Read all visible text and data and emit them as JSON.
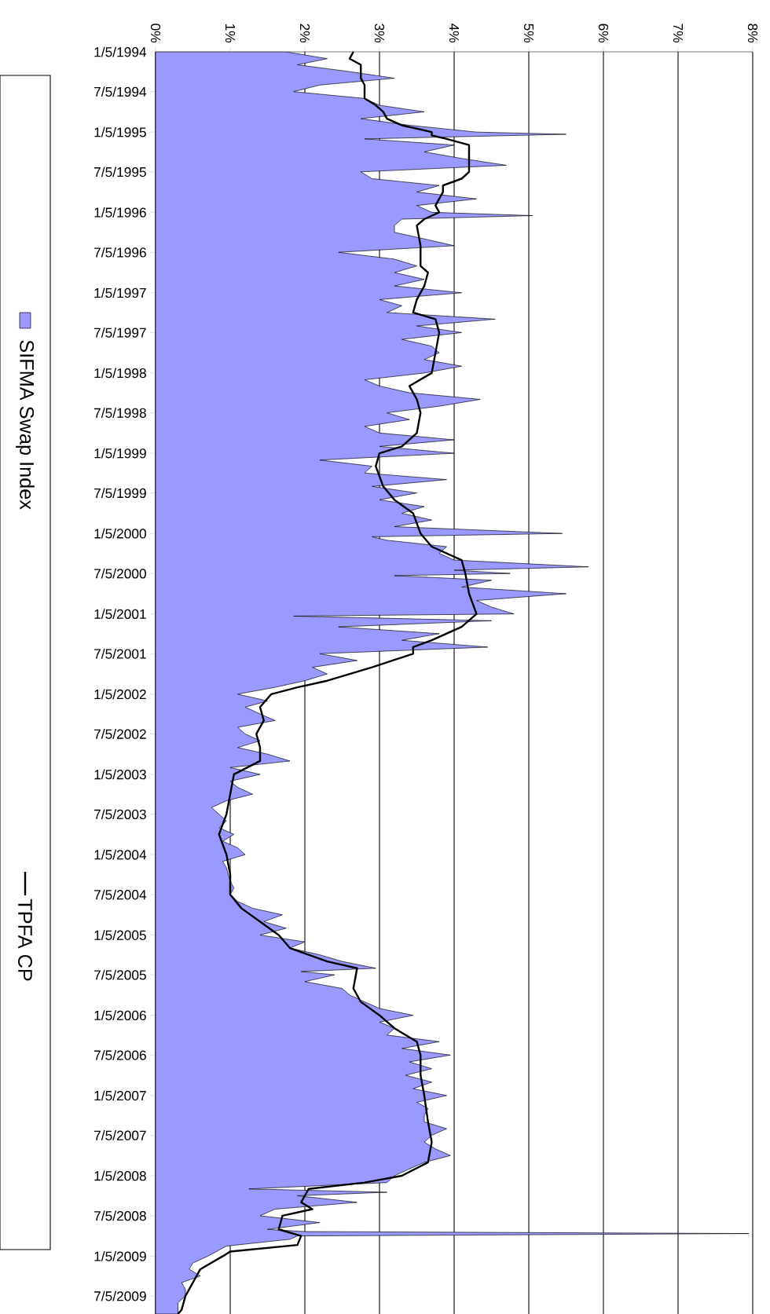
{
  "chart_data": {
    "type": "area",
    "series": [
      {
        "name": "SIFMA Swap Index",
        "type": "area",
        "color": "#9999ff",
        "x": [
          "1994-01-05",
          "1994-02-05",
          "1994-03-05",
          "1994-04-05",
          "1994-05-05",
          "1994-06-05",
          "1994-07-05",
          "1994-08-05",
          "1994-09-05",
          "1994-10-05",
          "1994-11-05",
          "1994-12-05",
          "1995-01-05",
          "1995-01-15",
          "1995-02-05",
          "1995-03-05",
          "1995-04-05",
          "1995-05-05",
          "1995-06-05",
          "1995-07-05",
          "1995-08-05",
          "1995-09-05",
          "1995-10-05",
          "1995-11-05",
          "1995-12-05",
          "1996-01-05",
          "1996-01-20",
          "1996-02-05",
          "1996-03-05",
          "1996-04-05",
          "1996-05-05",
          "1996-06-05",
          "1996-07-05",
          "1996-08-05",
          "1996-09-05",
          "1996-10-05",
          "1996-11-05",
          "1996-12-05",
          "1997-01-05",
          "1997-02-05",
          "1997-03-05",
          "1997-04-05",
          "1997-05-05",
          "1997-06-05",
          "1997-07-05",
          "1997-08-05",
          "1997-09-05",
          "1997-10-05",
          "1997-11-05",
          "1997-12-05",
          "1998-01-05",
          "1998-02-05",
          "1998-03-05",
          "1998-04-05",
          "1998-05-05",
          "1998-06-05",
          "1998-07-05",
          "1998-08-05",
          "1998-09-05",
          "1998-10-05",
          "1998-11-05",
          "1998-12-05",
          "1999-01-05",
          "1999-02-05",
          "1999-03-05",
          "1999-04-05",
          "1999-05-05",
          "1999-06-05",
          "1999-07-05",
          "1999-08-05",
          "1999-09-05",
          "1999-10-05",
          "1999-11-05",
          "1999-12-05",
          "2000-01-05",
          "2000-01-20",
          "2000-02-05",
          "2000-03-05",
          "2000-04-05",
          "2000-05-05",
          "2000-06-05",
          "2000-06-20",
          "2000-07-05",
          "2000-07-15",
          "2000-08-05",
          "2000-09-05",
          "2000-10-05",
          "2000-11-05",
          "2000-12-05",
          "2001-01-05",
          "2001-01-15",
          "2001-02-05",
          "2001-03-05",
          "2001-04-05",
          "2001-05-05",
          "2001-06-05",
          "2001-07-05",
          "2001-08-05",
          "2001-09-05",
          "2001-10-05",
          "2001-11-05",
          "2001-12-05",
          "2002-01-05",
          "2002-02-05",
          "2002-03-05",
          "2002-04-05",
          "2002-05-05",
          "2002-06-05",
          "2002-07-05",
          "2002-08-05",
          "2002-09-05",
          "2002-10-05",
          "2002-11-05",
          "2002-12-05",
          "2003-01-05",
          "2003-02-05",
          "2003-03-05",
          "2003-04-05",
          "2003-05-05",
          "2003-06-05",
          "2003-07-05",
          "2003-08-05",
          "2003-09-05",
          "2003-10-05",
          "2003-11-05",
          "2003-12-05",
          "2004-01-05",
          "2004-02-05",
          "2004-03-05",
          "2004-05-05",
          "2004-06-05",
          "2004-07-05",
          "2004-08-05",
          "2004-09-05",
          "2004-10-05",
          "2004-11-05",
          "2004-12-05",
          "2005-01-05",
          "2005-02-05",
          "2005-03-05",
          "2005-04-05",
          "2005-05-05",
          "2005-06-05",
          "2005-06-20",
          "2005-07-05",
          "2005-08-05",
          "2005-09-05",
          "2005-10-05",
          "2005-11-05",
          "2005-12-05",
          "2006-01-05",
          "2006-02-05",
          "2006-03-05",
          "2006-04-05",
          "2006-05-05",
          "2006-06-05",
          "2006-07-05",
          "2006-08-05",
          "2006-09-05",
          "2006-10-05",
          "2006-11-05",
          "2006-12-05",
          "2007-01-05",
          "2007-02-05",
          "2007-03-05",
          "2007-04-05",
          "2007-05-05",
          "2007-06-05",
          "2007-07-05",
          "2007-08-05",
          "2007-09-05",
          "2007-10-05",
          "2007-11-05",
          "2007-12-05",
          "2008-01-05",
          "2008-02-05",
          "2008-03-05",
          "2008-03-20",
          "2008-04-05",
          "2008-05-05",
          "2008-06-05",
          "2008-07-05",
          "2008-08-05",
          "2008-09-05",
          "2008-09-15",
          "2008-09-24",
          "2008-10-05",
          "2008-10-20",
          "2008-11-20",
          "2009-01-05",
          "2009-02-05",
          "2009-03-05",
          "2009-04-05",
          "2009-05-05",
          "2009-06-05",
          "2009-07-05",
          "2009-08-05",
          "2009-09-05",
          "2009-09-25"
        ],
        "values": [
          1.75,
          2.3,
          1.9,
          2.6,
          3.2,
          2.2,
          1.85,
          2.8,
          3.0,
          3.6,
          2.75,
          3.4,
          4.3,
          5.5,
          2.8,
          4.0,
          3.6,
          4.1,
          4.7,
          2.75,
          2.9,
          3.8,
          3.5,
          4.3,
          3.5,
          3.7,
          5.05,
          3.3,
          3.2,
          3.2,
          3.6,
          4.0,
          2.45,
          3.2,
          3.5,
          3.2,
          3.6,
          3.2,
          4.1,
          3.0,
          3.3,
          3.1,
          4.55,
          3.5,
          4.1,
          3.3,
          3.7,
          3.8,
          3.6,
          4.1,
          3.6,
          2.8,
          3.0,
          3.4,
          4.35,
          3.8,
          3.1,
          3.4,
          2.8,
          3.0,
          4.0,
          3.0,
          4.0,
          2.2,
          2.9,
          2.8,
          3.9,
          2.9,
          3.5,
          3.0,
          3.6,
          3.3,
          3.7,
          3.2,
          5.45,
          2.9,
          3.1,
          3.9,
          3.8,
          4.0,
          5.8,
          4.0,
          4.75,
          3.2,
          4.5,
          4.1,
          5.5,
          4.3,
          4.5,
          4.8,
          1.85,
          4.5,
          2.45,
          3.8,
          3.3,
          4.45,
          2.2,
          2.7,
          2.1,
          2.3,
          2.0,
          1.6,
          1.1,
          1.5,
          1.2,
          1.4,
          1.6,
          1.1,
          1.2,
          1.4,
          1.1,
          1.5,
          1.8,
          1.0,
          1.4,
          1.0,
          1.1,
          1.3,
          0.95,
          0.75,
          0.85,
          0.95,
          0.85,
          1.05,
          0.9,
          1.1,
          1.2,
          0.9,
          0.95,
          1.0,
          1.05,
          1.0,
          1.1,
          1.3,
          1.7,
          1.45,
          1.75,
          1.4,
          2.0,
          1.8,
          2.2,
          2.5,
          2.95,
          1.95,
          2.4,
          2.0,
          2.5,
          2.6,
          2.8,
          3.0,
          3.45,
          3.0,
          3.2,
          3.1,
          3.8,
          3.3,
          3.95,
          3.4,
          3.7,
          3.35,
          3.7,
          3.45,
          3.9,
          3.5,
          3.65,
          3.6,
          3.6,
          3.9,
          3.7,
          3.6,
          3.75,
          3.95,
          3.6,
          3.4,
          3.2,
          3.1,
          1.25,
          3.1,
          1.9,
          2.7,
          1.6,
          1.4,
          2.2,
          1.5,
          2.0,
          7.95,
          1.9,
          1.8,
          0.95,
          0.7,
          0.5,
          0.45,
          0.6,
          0.35,
          0.4,
          0.4,
          0.3,
          0.3,
          0.3
        ]
      },
      {
        "name": "TPFA CP",
        "type": "line",
        "color": "#000000",
        "x": [
          "1994-01-05",
          "1994-02-05",
          "1994-03-05",
          "1994-05-05",
          "1994-06-05",
          "1994-08-05",
          "1994-09-05",
          "1994-10-05",
          "1994-11-05",
          "1994-12-05",
          "1995-01-05",
          "1995-01-20",
          "1995-02-05",
          "1995-03-05",
          "1995-07-05",
          "1995-08-05",
          "1995-09-05",
          "1995-10-05",
          "1995-12-05",
          "1996-01-05",
          "1996-02-05",
          "1996-03-05",
          "1996-06-05",
          "1996-09-05",
          "1996-10-05",
          "1996-12-05",
          "1997-02-05",
          "1997-04-05",
          "1997-05-05",
          "1997-07-05",
          "1997-10-05",
          "1998-01-05",
          "1998-03-05",
          "1998-05-05",
          "1998-07-05",
          "1998-10-05",
          "1998-12-05",
          "1999-01-05",
          "1999-03-05",
          "1999-06-05",
          "1999-08-05",
          "1999-10-05",
          "2000-01-05",
          "2000-03-05",
          "2000-05-05",
          "2000-07-05",
          "2000-10-05",
          "2001-01-05",
          "2001-03-05",
          "2001-05-05",
          "2001-06-05",
          "2001-07-05",
          "2001-09-05",
          "2001-11-05",
          "2001-12-05",
          "2002-01-05",
          "2002-03-05",
          "2002-05-05",
          "2002-07-05",
          "2002-09-05",
          "2002-11-05",
          "2003-01-05",
          "2003-04-05",
          "2003-07-05",
          "2003-10-05",
          "2004-01-05",
          "2004-04-05",
          "2004-07-05",
          "2004-09-05",
          "2004-11-05",
          "2005-01-05",
          "2005-03-05",
          "2005-05-05",
          "2005-06-05",
          "2005-09-05",
          "2005-11-05",
          "2006-01-05",
          "2006-03-05",
          "2006-05-05",
          "2006-07-05",
          "2006-10-05",
          "2007-01-05",
          "2007-05-05",
          "2007-08-05",
          "2007-11-05",
          "2008-01-05",
          "2008-02-05",
          "2008-03-05",
          "2008-05-05",
          "2008-06-05",
          "2008-07-05",
          "2008-09-05",
          "2008-10-05",
          "2008-11-15",
          "2008-12-15",
          "2009-01-05",
          "2009-03-05",
          "2009-05-05",
          "2009-07-05",
          "2009-09-05",
          "2009-09-25"
        ],
        "values": [
          2.65,
          2.6,
          2.75,
          2.75,
          2.8,
          2.8,
          2.95,
          3.05,
          3.1,
          3.3,
          3.7,
          3.7,
          3.9,
          4.2,
          4.2,
          4.1,
          3.85,
          3.85,
          3.75,
          3.8,
          3.6,
          3.5,
          3.55,
          3.55,
          3.65,
          3.6,
          3.5,
          3.45,
          3.75,
          3.8,
          3.75,
          3.7,
          3.4,
          3.5,
          3.55,
          3.5,
          3.3,
          3.0,
          2.95,
          3.05,
          3.2,
          3.45,
          3.55,
          3.7,
          4.1,
          4.15,
          4.2,
          4.3,
          4.1,
          3.7,
          3.45,
          3.45,
          2.9,
          2.3,
          1.9,
          1.55,
          1.4,
          1.45,
          1.35,
          1.4,
          1.4,
          1.05,
          1.0,
          0.95,
          0.85,
          0.95,
          1.0,
          1.0,
          1.15,
          1.4,
          1.65,
          1.8,
          2.3,
          2.7,
          2.65,
          2.75,
          3.0,
          3.2,
          3.5,
          3.55,
          3.55,
          3.6,
          3.65,
          3.7,
          3.65,
          3.3,
          2.8,
          2.05,
          1.95,
          2.1,
          1.7,
          1.65,
          1.95,
          1.9,
          1.0,
          0.9,
          0.6,
          0.5,
          0.4,
          0.35,
          0.3
        ]
      }
    ],
    "orientation": "horizontal",
    "ylim": [
      "2009-09-25",
      "1994-01-05"
    ],
    "yticks": [
      {
        "value": "1994-01-05",
        "label": "1/5/1994"
      },
      {
        "value": "1994-07-05",
        "label": "7/5/1994"
      },
      {
        "value": "1995-01-05",
        "label": "1/5/1995"
      },
      {
        "value": "1995-07-05",
        "label": "7/5/1995"
      },
      {
        "value": "1996-01-05",
        "label": "1/5/1996"
      },
      {
        "value": "1996-07-05",
        "label": "7/5/1996"
      },
      {
        "value": "1997-01-05",
        "label": "1/5/1997"
      },
      {
        "value": "1997-07-05",
        "label": "7/5/1997"
      },
      {
        "value": "1998-01-05",
        "label": "1/5/1998"
      },
      {
        "value": "1998-07-05",
        "label": "7/5/1998"
      },
      {
        "value": "1999-01-05",
        "label": "1/5/1999"
      },
      {
        "value": "1999-07-05",
        "label": "7/5/1999"
      },
      {
        "value": "2000-01-05",
        "label": "1/5/2000"
      },
      {
        "value": "2000-07-05",
        "label": "7/5/2000"
      },
      {
        "value": "2001-01-05",
        "label": "1/5/2001"
      },
      {
        "value": "2001-07-05",
        "label": "7/5/2001"
      },
      {
        "value": "2002-01-05",
        "label": "1/5/2002"
      },
      {
        "value": "2002-07-05",
        "label": "7/5/2002"
      },
      {
        "value": "2003-01-05",
        "label": "1/5/2003"
      },
      {
        "value": "2003-07-05",
        "label": "7/5/2003"
      },
      {
        "value": "2004-01-05",
        "label": "1/5/2004"
      },
      {
        "value": "2004-07-05",
        "label": "7/5/2004"
      },
      {
        "value": "2005-01-05",
        "label": "1/5/2005"
      },
      {
        "value": "2005-07-05",
        "label": "7/5/2005"
      },
      {
        "value": "2006-01-05",
        "label": "1/5/2006"
      },
      {
        "value": "2006-07-05",
        "label": "7/5/2006"
      },
      {
        "value": "2007-01-05",
        "label": "1/5/2007"
      },
      {
        "value": "2007-07-05",
        "label": "7/5/2007"
      },
      {
        "value": "2008-01-05",
        "label": "1/5/2008"
      },
      {
        "value": "2008-07-05",
        "label": "7/5/2008"
      },
      {
        "value": "2009-01-05",
        "label": "1/5/2009"
      },
      {
        "value": "2009-07-05",
        "label": "7/5/2009"
      }
    ],
    "xlim": [
      0,
      8
    ],
    "xticks": [
      {
        "value": 0,
        "label": "0%"
      },
      {
        "value": 1,
        "label": "1%"
      },
      {
        "value": 2,
        "label": "2%"
      },
      {
        "value": 3,
        "label": "3%"
      },
      {
        "value": 4,
        "label": "4%"
      },
      {
        "value": 5,
        "label": "5%"
      },
      {
        "value": 6,
        "label": "6%"
      },
      {
        "value": 7,
        "label": "7%"
      },
      {
        "value": 8,
        "label": "8%"
      }
    ],
    "grid": "x",
    "legend": "left"
  }
}
